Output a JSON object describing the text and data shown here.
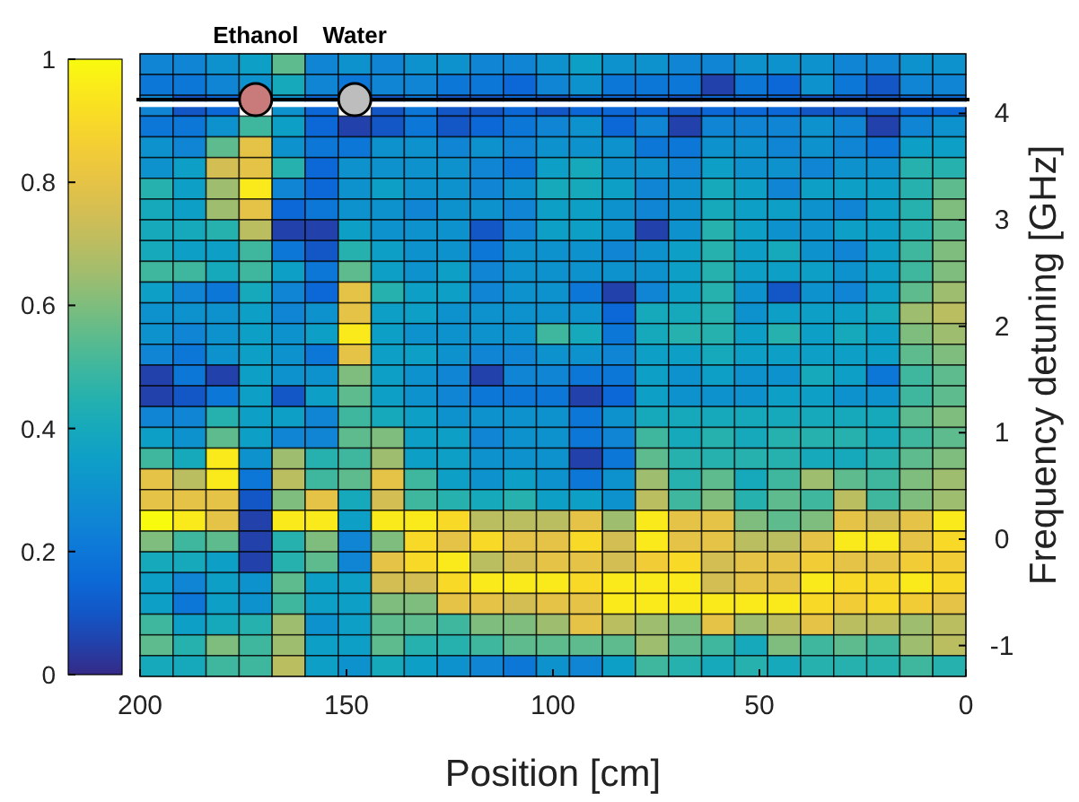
{
  "chart_data": {
    "type": "heatmap",
    "xlabel": "Position [cm]",
    "ylabel": "Frequency detuning [GHz]",
    "xlim": [
      200,
      0
    ],
    "xticks": [
      200,
      150,
      100,
      50,
      0
    ],
    "ylim": [
      -1.29,
      4.56
    ],
    "yticks": [
      -1,
      0,
      1,
      2,
      3,
      4
    ],
    "clim": [
      0,
      1
    ],
    "cticks": [
      0,
      0.2,
      0.4,
      0.6,
      0.8,
      1
    ],
    "ref_lines": [
      {
        "axis": "y",
        "value": 4.13,
        "color": "#000000"
      }
    ],
    "bands": [
      {
        "axis": "y",
        "from": 4.06,
        "to": 4.11,
        "color": "#ffffff"
      }
    ],
    "annotations": [
      {
        "text": "Ethanol",
        "x": 172,
        "y": 4.13
      },
      {
        "text": "Water",
        "x": 148,
        "y": 4.13
      }
    ],
    "x": [
      196,
      188,
      180,
      172,
      164,
      156,
      148,
      140,
      132,
      124,
      116,
      108,
      100,
      92,
      84,
      76,
      68,
      60,
      52,
      44,
      36,
      28,
      20,
      12,
      4
    ],
    "cells": [
      [
        0.25,
        0.25,
        0.3,
        0.35,
        0.55,
        0.25,
        0.3,
        0.25,
        0.3,
        0.3,
        0.25,
        0.25,
        0.3,
        0.35,
        0.3,
        0.3,
        0.25,
        0.25,
        0.3,
        0.3,
        0.3,
        0.25,
        0.25,
        0.3,
        0.3
      ],
      [
        0.2,
        0.2,
        0.25,
        0.3,
        0.4,
        0.25,
        0.2,
        0.25,
        0.25,
        0.2,
        0.2,
        0.15,
        0.25,
        0.3,
        0.2,
        0.2,
        0.2,
        0.05,
        0.2,
        0.15,
        0.3,
        0.2,
        0.1,
        0.25,
        0.25
      ],
      [
        0.25,
        0.1,
        0.15,
        null,
        0.3,
        0.15,
        null,
        0.1,
        0.2,
        0.1,
        0.1,
        0.15,
        0.1,
        0.15,
        0.15,
        0.15,
        0.1,
        0.15,
        0.15,
        0.15,
        0.1,
        0.1,
        0.1,
        0.15,
        0.15
      ],
      [
        0.2,
        0.2,
        0.3,
        0.5,
        0.35,
        0.15,
        0.05,
        0.1,
        0.2,
        0.1,
        0.15,
        0.2,
        0.25,
        0.3,
        0.15,
        0.25,
        0.05,
        0.25,
        0.25,
        0.25,
        0.3,
        0.25,
        0.05,
        0.25,
        0.3
      ],
      [
        0.3,
        0.25,
        0.55,
        0.8,
        0.3,
        0.2,
        0.2,
        0.3,
        0.3,
        0.25,
        0.3,
        0.25,
        0.3,
        0.3,
        0.3,
        0.2,
        0.2,
        0.3,
        0.3,
        0.25,
        0.3,
        0.25,
        0.2,
        0.35,
        0.35
      ],
      [
        0.3,
        0.35,
        0.75,
        0.8,
        0.45,
        0.15,
        0.3,
        0.3,
        0.3,
        0.3,
        0.25,
        0.2,
        0.35,
        0.4,
        0.3,
        0.3,
        0.25,
        0.35,
        0.3,
        0.3,
        0.25,
        0.3,
        0.3,
        0.45,
        0.45
      ],
      [
        0.45,
        0.35,
        0.65,
        0.95,
        0.25,
        0.15,
        0.3,
        0.35,
        0.3,
        0.3,
        0.25,
        0.3,
        0.4,
        0.4,
        0.35,
        0.25,
        0.3,
        0.4,
        0.35,
        0.25,
        0.35,
        0.35,
        0.35,
        0.45,
        0.55
      ],
      [
        0.4,
        0.35,
        0.65,
        0.8,
        0.15,
        0.2,
        0.3,
        0.3,
        0.25,
        0.3,
        0.3,
        0.25,
        0.35,
        0.35,
        0.3,
        0.25,
        0.3,
        0.4,
        0.35,
        0.35,
        0.3,
        0.25,
        0.35,
        0.45,
        0.6
      ],
      [
        0.4,
        0.4,
        0.45,
        0.7,
        0.05,
        0.05,
        0.35,
        0.3,
        0.3,
        0.3,
        0.1,
        0.25,
        0.35,
        0.35,
        0.3,
        0.05,
        0.3,
        0.45,
        0.35,
        0.3,
        0.3,
        0.35,
        0.35,
        0.45,
        0.55
      ],
      [
        0.4,
        0.35,
        0.35,
        0.5,
        0.2,
        0.1,
        0.45,
        0.35,
        0.3,
        0.3,
        0.2,
        0.3,
        0.3,
        0.3,
        0.25,
        0.3,
        0.35,
        0.45,
        0.35,
        0.4,
        0.3,
        0.25,
        0.35,
        0.5,
        0.6
      ],
      [
        0.5,
        0.5,
        0.4,
        0.5,
        0.35,
        0.2,
        0.55,
        0.35,
        0.3,
        0.35,
        0.25,
        0.3,
        0.3,
        0.3,
        0.3,
        0.3,
        0.35,
        0.45,
        0.35,
        0.35,
        0.35,
        0.3,
        0.35,
        0.5,
        0.6
      ],
      [
        0.35,
        0.25,
        0.2,
        0.4,
        0.25,
        0.15,
        0.8,
        0.45,
        0.35,
        0.35,
        0.25,
        0.3,
        0.3,
        0.2,
        0.05,
        0.25,
        0.35,
        0.45,
        0.3,
        0.1,
        0.3,
        0.25,
        0.35,
        0.55,
        0.65
      ],
      [
        0.3,
        0.3,
        0.3,
        0.35,
        0.25,
        0.3,
        0.8,
        0.35,
        0.35,
        0.3,
        0.3,
        0.3,
        0.3,
        0.3,
        0.15,
        0.4,
        0.4,
        0.45,
        0.3,
        0.35,
        0.35,
        0.35,
        0.4,
        0.65,
        0.7
      ],
      [
        0.3,
        0.25,
        0.3,
        0.35,
        0.3,
        0.35,
        0.95,
        0.35,
        0.3,
        0.3,
        0.3,
        0.3,
        0.5,
        0.4,
        0.2,
        0.4,
        0.45,
        0.45,
        0.35,
        0.45,
        0.35,
        0.4,
        0.35,
        0.6,
        0.65
      ],
      [
        0.25,
        0.2,
        0.3,
        0.35,
        0.3,
        0.2,
        0.8,
        0.35,
        0.35,
        0.3,
        0.25,
        0.25,
        0.3,
        0.3,
        0.25,
        0.35,
        0.35,
        0.4,
        0.35,
        0.35,
        0.35,
        0.35,
        0.35,
        0.55,
        0.6
      ],
      [
        0.05,
        0.2,
        0.05,
        0.35,
        0.3,
        0.3,
        0.6,
        0.35,
        0.3,
        0.25,
        0.05,
        0.25,
        0.25,
        0.2,
        0.2,
        0.35,
        0.3,
        0.35,
        0.3,
        0.3,
        0.4,
        0.35,
        0.2,
        0.5,
        0.55
      ],
      [
        0.05,
        0.1,
        0.2,
        0.35,
        0.1,
        0.35,
        0.55,
        0.35,
        0.3,
        0.25,
        0.2,
        0.2,
        0.2,
        0.05,
        0.15,
        0.35,
        0.3,
        0.3,
        0.3,
        0.35,
        0.35,
        0.3,
        0.3,
        0.5,
        0.55
      ],
      [
        0.25,
        0.25,
        0.45,
        0.35,
        0.35,
        0.25,
        0.5,
        0.4,
        0.35,
        0.3,
        0.3,
        0.3,
        0.3,
        0.2,
        0.3,
        0.4,
        0.4,
        0.4,
        0.4,
        0.4,
        0.4,
        0.4,
        0.4,
        0.55,
        0.6
      ],
      [
        0.35,
        0.3,
        0.55,
        0.35,
        0.25,
        0.25,
        0.55,
        0.6,
        0.35,
        0.35,
        0.25,
        0.3,
        0.3,
        0.2,
        0.25,
        0.5,
        0.4,
        0.45,
        0.4,
        0.45,
        0.45,
        0.45,
        0.4,
        0.5,
        0.55
      ],
      [
        0.5,
        0.4,
        0.95,
        0.3,
        0.65,
        0.45,
        0.5,
        0.65,
        0.35,
        0.35,
        0.3,
        0.3,
        0.3,
        0.05,
        0.2,
        0.55,
        0.45,
        0.45,
        0.45,
        0.45,
        0.4,
        0.4,
        0.45,
        0.55,
        0.6
      ],
      [
        0.8,
        0.7,
        0.95,
        0.2,
        0.7,
        0.5,
        0.55,
        0.8,
        0.5,
        0.35,
        0.3,
        0.35,
        0.3,
        0.2,
        0.3,
        0.65,
        0.45,
        0.55,
        0.4,
        0.5,
        0.65,
        0.55,
        0.5,
        0.6,
        0.65
      ],
      [
        0.8,
        0.8,
        0.8,
        0.1,
        0.6,
        0.8,
        0.4,
        0.75,
        0.5,
        0.45,
        0.4,
        0.45,
        0.35,
        0.35,
        0.3,
        0.7,
        0.5,
        0.6,
        0.45,
        0.55,
        0.5,
        0.7,
        0.5,
        0.6,
        0.65
      ],
      [
        1,
        0.95,
        0.8,
        0.05,
        0.95,
        0.95,
        0.35,
        0.95,
        0.95,
        0.9,
        0.7,
        0.7,
        0.7,
        0.8,
        0.65,
        0.95,
        0.8,
        0.8,
        0.6,
        0.55,
        0.6,
        0.8,
        0.75,
        0.8,
        0.95
      ],
      [
        0.6,
        0.5,
        0.55,
        0.05,
        0.45,
        0.6,
        0.25,
        0.6,
        0.9,
        0.8,
        0.9,
        0.8,
        0.8,
        0.9,
        0.75,
        0.95,
        0.8,
        0.8,
        0.7,
        0.7,
        0.8,
        0.95,
        0.95,
        0.8,
        0.9
      ],
      [
        0.4,
        0.4,
        0.35,
        0.05,
        0.45,
        0.55,
        0.25,
        0.8,
        0.9,
        0.95,
        0.7,
        0.75,
        0.8,
        0.8,
        0.75,
        0.85,
        0.9,
        0.75,
        0.8,
        0.8,
        0.85,
        0.8,
        0.8,
        0.85,
        0.85
      ],
      [
        0.35,
        0.25,
        0.35,
        0.3,
        0.55,
        0.35,
        0.35,
        0.75,
        0.75,
        0.9,
        0.95,
        0.95,
        0.95,
        0.9,
        0.95,
        0.95,
        0.95,
        0.75,
        0.8,
        0.8,
        0.95,
        0.9,
        0.9,
        0.95,
        0.9
      ],
      [
        0.35,
        0.2,
        0.35,
        0.3,
        0.5,
        0.35,
        0.35,
        0.6,
        0.6,
        0.8,
        0.8,
        0.75,
        0.8,
        0.8,
        0.95,
        0.95,
        0.95,
        0.95,
        0.95,
        0.95,
        0.9,
        0.85,
        0.9,
        0.85,
        0.8
      ],
      [
        0.5,
        0.35,
        0.4,
        0.45,
        0.65,
        0.3,
        0.35,
        0.55,
        0.55,
        0.5,
        0.6,
        0.6,
        0.65,
        0.8,
        0.7,
        0.65,
        0.6,
        0.8,
        0.65,
        0.7,
        0.8,
        0.7,
        0.7,
        0.65,
        0.7
      ],
      [
        0.55,
        0.45,
        0.6,
        0.5,
        0.65,
        0.35,
        0.35,
        0.55,
        0.45,
        0.45,
        0.5,
        0.55,
        0.55,
        0.55,
        0.55,
        0.65,
        0.55,
        0.5,
        0.4,
        0.6,
        0.5,
        0.55,
        0.5,
        0.65,
        0.7
      ],
      [
        0.4,
        0.4,
        0.5,
        0.5,
        0.7,
        0.35,
        0.3,
        0.4,
        0.35,
        0.3,
        0.25,
        0.2,
        0.3,
        0.25,
        0.35,
        0.5,
        0.45,
        0.4,
        0.45,
        0.4,
        0.45,
        0.45,
        0.45,
        0.5,
        0.45
      ]
    ]
  }
}
